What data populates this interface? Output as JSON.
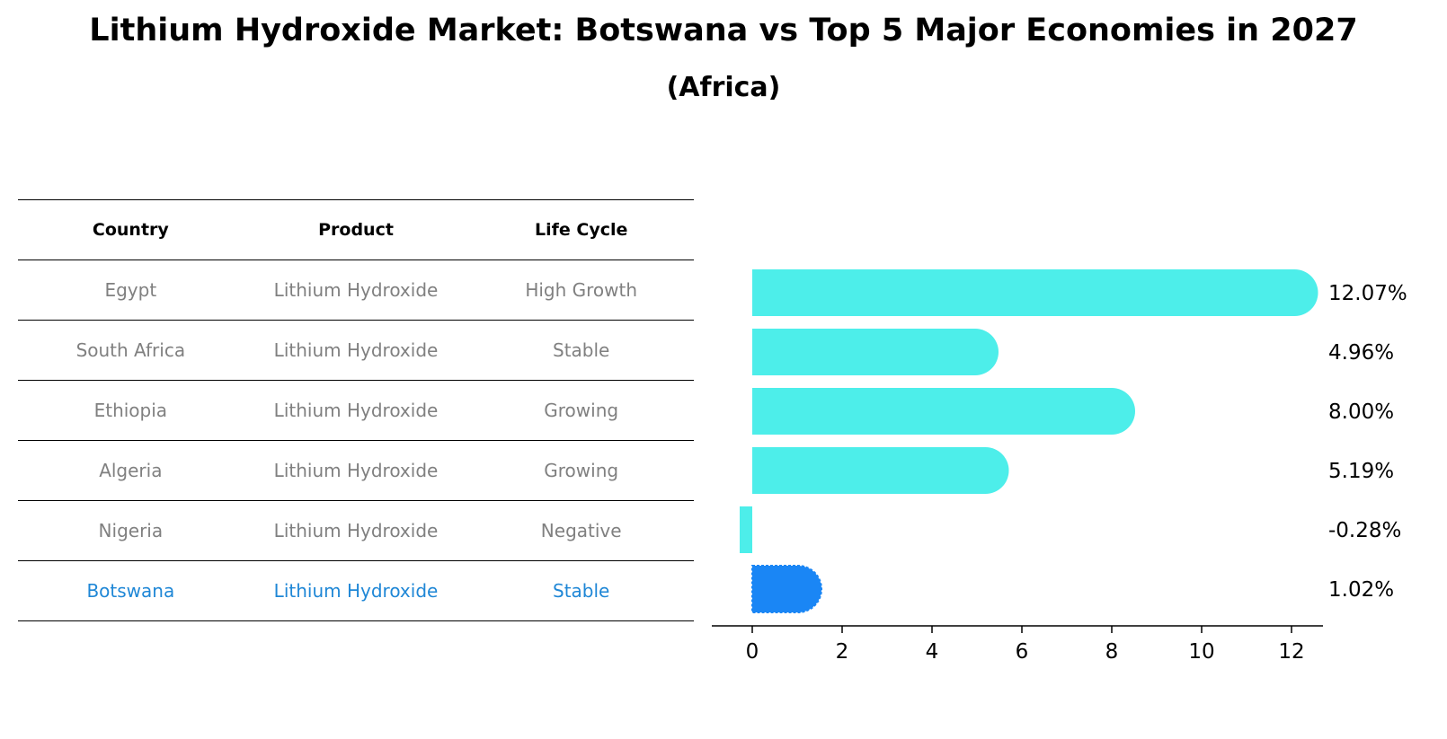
{
  "title": "Lithium Hydroxide Market: Botswana vs Top 5 Major Economies in 2027",
  "subtitle": "(Africa)",
  "table": {
    "headers": [
      "Country",
      "Product",
      "Life Cycle"
    ],
    "rows": [
      [
        "Egypt",
        "Lithium Hydroxide",
        "High Growth"
      ],
      [
        "South Africa",
        "Lithium Hydroxide",
        "Stable"
      ],
      [
        "Ethiopia",
        "Lithium Hydroxide",
        "Growing"
      ],
      [
        "Algeria",
        "Lithium Hydroxide",
        "Growing"
      ],
      [
        "Nigeria",
        "Lithium Hydroxide",
        "Negative"
      ],
      [
        "Botswana",
        "Lithium Hydroxide",
        "Stable"
      ]
    ],
    "highlight_row": 5
  },
  "chart_data": {
    "type": "bar",
    "orientation": "horizontal",
    "categories": [
      "Egypt",
      "South Africa",
      "Ethiopia",
      "Algeria",
      "Nigeria",
      "Botswana"
    ],
    "values": [
      12.07,
      4.96,
      8.0,
      5.19,
      -0.28,
      1.02
    ],
    "labels": [
      "12.07%",
      "4.96%",
      "8.00%",
      "5.19%",
      "-0.28%",
      "1.02%"
    ],
    "xticks": [
      0,
      2,
      4,
      6,
      8,
      10,
      12
    ],
    "xlim": [
      -0.9,
      12.7
    ],
    "colors": {
      "default": "#4deeea",
      "highlight": "#1a86f5"
    },
    "highlight_index": 5
  }
}
